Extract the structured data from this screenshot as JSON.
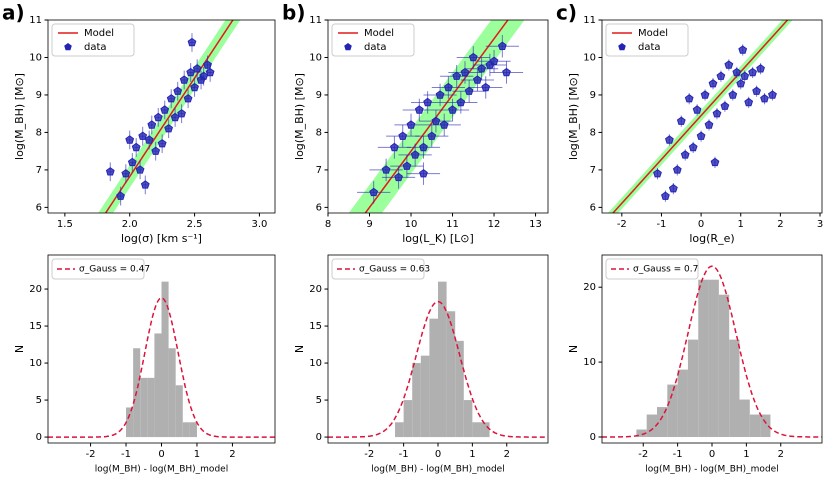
{
  "chart_data": [
    {
      "type": "scatter",
      "panel_label": "a)",
      "xlabel": "log(σ) [km s⁻¹]",
      "ylabel": "log(M_BH) [M⊙]",
      "xlim": [
        1.37,
        3.12
      ],
      "ylim": [
        5.85,
        11
      ],
      "xticks": [
        1.5,
        {
          "value": 2,
          "label": "2.0"
        },
        2.5,
        {
          "value": 3,
          "label": "3.0"
        }
      ],
      "yticks": [
        6,
        7,
        8,
        9,
        10,
        11
      ],
      "model": {
        "name": "Model",
        "slope": 5.25,
        "intercept": -3.675,
        "color": "#e31a1c",
        "band": 0.3,
        "band_color": "#90ff90"
      },
      "series": [
        {
          "name": "data",
          "color": "#2424b4",
          "x": [
            1.85,
            1.93,
            1.97,
            2.0,
            2.02,
            2.05,
            2.08,
            2.1,
            2.12,
            2.15,
            2.17,
            2.2,
            2.22,
            2.25,
            2.27,
            2.3,
            2.32,
            2.35,
            2.37,
            2.4,
            2.42,
            2.45,
            2.47,
            2.5,
            2.52,
            2.55,
            2.57,
            2.6,
            2.62,
            2.48
          ],
          "values": [
            6.95,
            6.3,
            6.9,
            7.8,
            7.2,
            7.6,
            7.0,
            7.9,
            6.6,
            7.8,
            8.2,
            7.5,
            8.4,
            7.7,
            8.6,
            8.1,
            8.9,
            8.4,
            9.1,
            8.5,
            9.4,
            8.9,
            9.6,
            9.2,
            9.7,
            9.4,
            9.5,
            9.8,
            9.6,
            10.4
          ],
          "xerr": 0.02,
          "yerr": 0.25
        }
      ]
    },
    {
      "type": "scatter",
      "panel_label": "b)",
      "xlabel": "log(L_K) [L⊙]",
      "ylabel": "log(M_BH) [M⊙]",
      "xlim": [
        8,
        13.3
      ],
      "ylim": [
        5.85,
        11
      ],
      "xticks": [
        8,
        9,
        10,
        11,
        12,
        13
      ],
      "yticks": [
        6,
        7,
        8,
        9,
        10,
        11
      ],
      "model": {
        "name": "Model",
        "slope": 1.5,
        "intercept": -7.5,
        "color": "#e31a1c",
        "band": 0.6,
        "band_color": "#90ff90"
      },
      "series": [
        {
          "name": "data",
          "color": "#2424b4",
          "x": [
            9.1,
            9.4,
            9.6,
            9.7,
            9.8,
            9.9,
            10.0,
            10.1,
            10.2,
            10.3,
            10.4,
            10.5,
            10.6,
            10.7,
            10.8,
            10.9,
            11.0,
            11.1,
            11.2,
            11.3,
            11.4,
            11.5,
            11.6,
            11.7,
            11.8,
            11.9,
            12.0,
            12.2,
            12.3,
            10.3
          ],
          "values": [
            6.4,
            7.0,
            7.6,
            6.8,
            7.9,
            7.1,
            8.2,
            7.4,
            8.6,
            7.6,
            8.8,
            7.9,
            8.3,
            9.0,
            8.2,
            9.2,
            8.6,
            9.5,
            8.8,
            9.6,
            9.1,
            10.0,
            9.4,
            9.7,
            9.2,
            9.8,
            9.9,
            10.3,
            9.6,
            6.9
          ],
          "xerr": 0.4,
          "yerr": 0.3
        }
      ]
    },
    {
      "type": "scatter",
      "panel_label": "c)",
      "xlabel": "log(R_e)",
      "ylabel": "log(M_BH) [M⊙]",
      "xlim": [
        -2.5,
        3.05
      ],
      "ylim": [
        5.85,
        11
      ],
      "xticks": [
        -2,
        -1,
        0,
        1,
        2,
        3
      ],
      "yticks": [
        6,
        7,
        8,
        9,
        10,
        11
      ],
      "model": {
        "name": "Model",
        "slope": 1.17,
        "intercept": 8.45,
        "color": "#e31a1c",
        "band": 0.15,
        "band_color": "#90ff90"
      },
      "series": [
        {
          "name": "data",
          "color": "#2424b4",
          "x": [
            -1.1,
            -0.9,
            -0.8,
            -0.6,
            -0.5,
            -0.4,
            -0.3,
            -0.2,
            -0.1,
            0.0,
            0.1,
            0.2,
            0.3,
            0.4,
            0.5,
            0.6,
            0.7,
            0.8,
            0.9,
            1.0,
            1.1,
            1.2,
            1.3,
            1.4,
            1.5,
            1.6,
            1.8,
            -0.7,
            0.35,
            1.05
          ],
          "values": [
            6.9,
            6.3,
            7.8,
            7.0,
            8.3,
            7.4,
            8.9,
            7.6,
            8.6,
            7.9,
            9.0,
            8.2,
            9.3,
            8.5,
            9.5,
            8.7,
            9.8,
            9.0,
            9.6,
            9.3,
            9.5,
            8.8,
            9.6,
            9.1,
            9.7,
            8.9,
            9.0,
            6.5,
            7.2,
            10.2
          ],
          "xerr": 0.02,
          "yerr": 0.15
        }
      ]
    },
    {
      "type": "histogram",
      "xlabel": "log(M_BH) - log(M_BH)_model",
      "ylabel": "N",
      "color": "#b0b0b0",
      "xlim": [
        -3.2,
        3.2
      ],
      "ylim": [
        -0.8,
        24.6
      ],
      "xticks": [
        -2,
        -1,
        0,
        1,
        2
      ],
      "yticks": [
        0,
        5,
        10,
        15,
        20
      ],
      "bins": [
        -1.0,
        -0.8,
        -0.6,
        -0.4,
        -0.2,
        0,
        0.2,
        0.4,
        0.6,
        0.8,
        1.0
      ],
      "counts": [
        4,
        12,
        8,
        8,
        14,
        21,
        12,
        7,
        2,
        2
      ],
      "gauss": {
        "label": "σ_Gauss = 0.47",
        "mean": 0,
        "sigma": 0.47,
        "amplitude": 18.8,
        "color": "#dc143c"
      }
    },
    {
      "type": "histogram",
      "xlabel": "log(M_BH) - log(M_BH)_model",
      "ylabel": "N",
      "color": "#b0b0b0",
      "xlim": [
        -3.2,
        3.2
      ],
      "ylim": [
        -0.8,
        24.6
      ],
      "xticks": [
        -2,
        -1,
        0,
        1,
        2
      ],
      "yticks": [
        0,
        5,
        10,
        15,
        20
      ],
      "bins": [
        -1.25,
        -1.0,
        -0.75,
        -0.5,
        -0.25,
        0,
        0.25,
        0.5,
        0.75,
        1.0,
        1.25,
        1.5
      ],
      "counts": [
        2,
        5,
        10,
        11,
        16,
        21,
        17,
        13,
        5,
        2,
        2
      ],
      "gauss": {
        "label": "σ_Gauss = 0.63",
        "mean": 0,
        "sigma": 0.63,
        "amplitude": 18.3,
        "color": "#dc143c"
      }
    },
    {
      "type": "histogram",
      "xlabel": "log(M_BH) - log(M_BH)_model",
      "ylabel": "N",
      "color": "#b0b0b0",
      "xlim": [
        -3.2,
        3.2
      ],
      "ylim": [
        -0.8,
        24.3
      ],
      "xticks": [
        -2,
        -1,
        0,
        1,
        2
      ],
      "yticks": [
        0,
        10,
        20
      ],
      "bins": [
        -2.2,
        -1.9,
        -1.6,
        -1.3,
        -1.0,
        -0.7,
        -0.4,
        -0.1,
        0.2,
        0.5,
        0.8,
        1.1,
        1.4,
        1.7
      ],
      "counts": [
        1,
        3,
        4,
        7,
        9,
        13,
        21,
        21,
        19,
        13,
        5,
        3,
        3
      ],
      "gauss": {
        "label": "σ_Gauss = 0.7",
        "mean": 0,
        "sigma": 0.7,
        "amplitude": 22.8,
        "color": "#dc143c"
      }
    }
  ]
}
